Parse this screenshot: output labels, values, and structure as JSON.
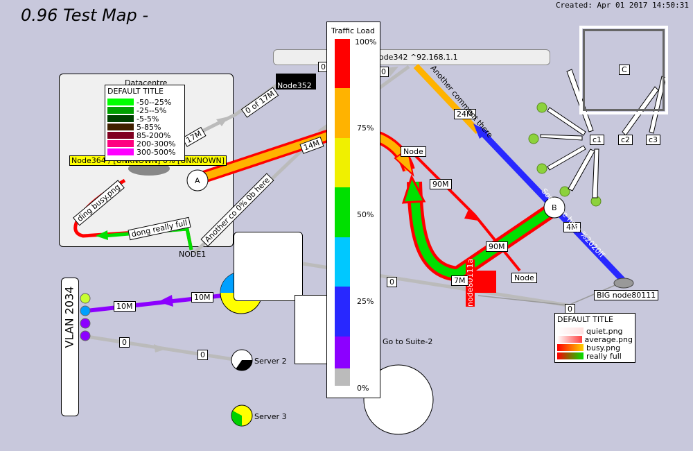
{
  "map": {
    "title": "0.96 Test Map -",
    "created": "Created: Apr 01 2017 14:50:31"
  },
  "colors": {
    "background": "#c8c8dc",
    "red": "#ff0000",
    "orange": "#ffb300",
    "green": "#00e000",
    "blue": "#2828ff",
    "purple": "#8c00ff",
    "grey": "#c8c8c8"
  },
  "traffic_legend": {
    "title": "Traffic Load",
    "ticks": [
      "100%",
      "75%",
      "50%",
      "25%",
      "0%"
    ]
  },
  "default_legend": {
    "title": "DEFAULT TITLE",
    "items": [
      "-50--25%",
      "-25--5%",
      "-5-5%",
      "5-85%",
      "85-200%",
      "200-300%",
      "300-500%"
    ]
  },
  "image_legend": {
    "title": "DEFAULT TITLE",
    "items": [
      "quiet.png",
      "average.png",
      "busy.png",
      "really full"
    ]
  },
  "nodes": {
    "datacentre": "Datacentre",
    "node352": "Node352",
    "node342": "node342 ^92.168.1.1",
    "node364": "Node364 / [UNKNOWN] 0% [UNKNOWN]",
    "a": "A",
    "b": "B",
    "c": "C",
    "c1": "c1",
    "c2": "c2",
    "c3": "c3",
    "node_right": "Node",
    "node_small": "Node",
    "node1": "NODE1",
    "node80111a": "node80111a",
    "big_node": "BIG node80111",
    "vlan": "VLAN 2034",
    "server2": "Server 2",
    "server3": "Server 3",
    "suite2": "Go to Suite-2"
  },
  "link_labels": {
    "l_17m": "17M",
    "l_0of17m": "0 of 17M",
    "l_14m": "14M",
    "l_24m": "24M",
    "l_90m_a": "90M",
    "l_90m_b": "90M",
    "l_4m": "4M",
    "l_7m": "7M",
    "l_10m_a": "10M",
    "l_10m_b": "10M",
    "l_0_a": "0",
    "l_0_b": "0",
    "l_0_c": "0",
    "l_0_d": "0",
    "l_0_e": "0",
    "l_0_f": "0",
    "ding_busy": "ding busy.png",
    "dong_full": "dong really full",
    "another_0pct": "Another co 0% 0b here",
    "another_comment": "Another comment there",
    "someone_here": "Someone here %2020ff"
  }
}
